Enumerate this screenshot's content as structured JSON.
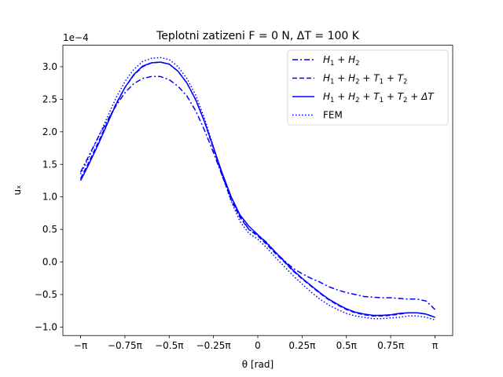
{
  "chart_data": {
    "type": "line",
    "title": "Teplotni zatizeni  F = 0 N, ΔT = 100 K",
    "xlabel": "θ [rad]",
    "ylabel": "uₓ",
    "y_scale_label": "1e−4",
    "x_unit": "π·rad (θ/π)",
    "xlim": [
      -1.1,
      1.1
    ],
    "ylim": [
      -1.13,
      3.33
    ],
    "x_ticks": [
      -1,
      -0.75,
      -0.5,
      -0.25,
      0,
      0.25,
      0.5,
      0.75,
      1
    ],
    "x_tick_labels": [
      "−π",
      "−0.75π",
      "−0.5π",
      "−0.25π",
      "0",
      "0.25π",
      "0.5π",
      "0.75π",
      "π"
    ],
    "y_ticks": [
      -1.0,
      -0.5,
      0.0,
      0.5,
      1.0,
      1.5,
      2.0,
      2.5,
      3.0
    ],
    "y_tick_labels": [
      "−1.0",
      "−0.5",
      "0.0",
      "0.5",
      "1.0",
      "1.5",
      "2.0",
      "2.5",
      "3.0"
    ],
    "grid": false,
    "legend_position": "top-right",
    "color": "#0000ff",
    "x": [
      -1,
      -0.95,
      -0.9,
      -0.85,
      -0.8,
      -0.75,
      -0.7,
      -0.65,
      -0.6,
      -0.55,
      -0.5,
      -0.45,
      -0.4,
      -0.35,
      -0.3,
      -0.25,
      -0.2,
      -0.15,
      -0.1,
      -0.05,
      0,
      0.05,
      0.1,
      0.15,
      0.2,
      0.25,
      0.3,
      0.35,
      0.4,
      0.45,
      0.5,
      0.55,
      0.6,
      0.65,
      0.7,
      0.75,
      0.8,
      0.85,
      0.9,
      0.95,
      1
    ],
    "series": [
      {
        "name": "H1 + H2",
        "legend_main": [
          "H",
          "1",
          " + H",
          "2"
        ],
        "dash": "7,3,2,3",
        "values": [
          1.38,
          1.65,
          1.92,
          2.17,
          2.4,
          2.6,
          2.74,
          2.82,
          2.85,
          2.85,
          2.8,
          2.7,
          2.55,
          2.32,
          2.02,
          1.68,
          1.32,
          0.99,
          0.7,
          0.5,
          0.42,
          0.3,
          0.15,
          0.02,
          -0.1,
          -0.18,
          -0.25,
          -0.31,
          -0.38,
          -0.43,
          -0.47,
          -0.5,
          -0.53,
          -0.54,
          -0.55,
          -0.55,
          -0.56,
          -0.57,
          -0.57,
          -0.6,
          -0.73
        ]
      },
      {
        "name": "H1 + H2 + T1 + T2",
        "legend_main": [
          "H",
          "1",
          " + H",
          "2",
          " + T",
          "1",
          " + T",
          "2"
        ],
        "dash": "6,3",
        "values": [
          1.28,
          1.55,
          1.84,
          2.14,
          2.43,
          2.68,
          2.87,
          3.0,
          3.06,
          3.07,
          3.04,
          2.93,
          2.75,
          2.49,
          2.15,
          1.74,
          1.32,
          0.95,
          0.68,
          0.5,
          0.4,
          0.27,
          0.13,
          0.0,
          -0.14,
          -0.26,
          -0.37,
          -0.48,
          -0.58,
          -0.66,
          -0.73,
          -0.78,
          -0.81,
          -0.83,
          -0.83,
          -0.82,
          -0.8,
          -0.78,
          -0.78,
          -0.8,
          -0.85
        ]
      },
      {
        "name": "H1 + H2 + T1 + T2 + ΔT",
        "legend_main": [
          "H",
          "1",
          " + H",
          "2",
          " + T",
          "1",
          " + T",
          "2",
          " + ΔT"
        ],
        "dash": "",
        "values": [
          1.25,
          1.52,
          1.81,
          2.12,
          2.42,
          2.68,
          2.88,
          3.01,
          3.06,
          3.07,
          3.04,
          2.93,
          2.75,
          2.49,
          2.15,
          1.76,
          1.36,
          1.0,
          0.72,
          0.55,
          0.42,
          0.29,
          0.15,
          0.01,
          -0.13,
          -0.25,
          -0.36,
          -0.47,
          -0.57,
          -0.65,
          -0.72,
          -0.77,
          -0.8,
          -0.82,
          -0.82,
          -0.81,
          -0.79,
          -0.78,
          -0.78,
          -0.8,
          -0.85
        ]
      },
      {
        "name": "FEM",
        "legend_main": [
          "FEM"
        ],
        "dash": "1.5,2.5",
        "values": [
          1.35,
          1.62,
          1.92,
          2.22,
          2.52,
          2.77,
          2.96,
          3.08,
          3.13,
          3.14,
          3.11,
          3.0,
          2.82,
          2.56,
          2.2,
          1.77,
          1.33,
          0.93,
          0.62,
          0.44,
          0.35,
          0.22,
          0.07,
          -0.07,
          -0.21,
          -0.34,
          -0.46,
          -0.57,
          -0.66,
          -0.73,
          -0.79,
          -0.83,
          -0.85,
          -0.87,
          -0.87,
          -0.86,
          -0.85,
          -0.83,
          -0.83,
          -0.85,
          -0.89
        ]
      }
    ]
  }
}
